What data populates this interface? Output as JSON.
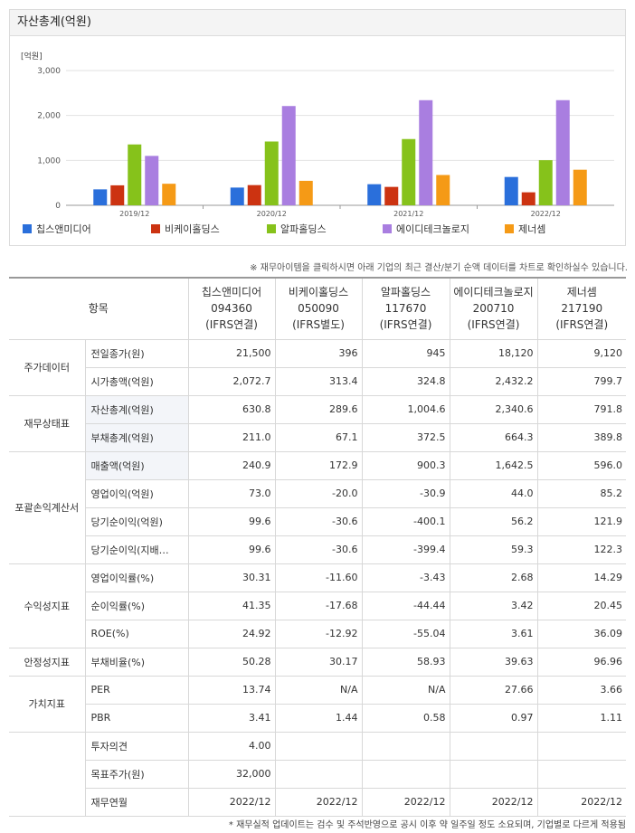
{
  "chart_data": {
    "type": "bar",
    "title": "자산총계(억원)",
    "unit_label": "[억원]",
    "categories": [
      "2019/12",
      "2020/12",
      "2021/12",
      "2022/12"
    ],
    "ylim": [
      0,
      3000
    ],
    "yticks": [
      "0",
      "1,000",
      "2,000",
      "3,000"
    ],
    "grid": true,
    "legend_position": "bottom",
    "series": [
      {
        "name": "칩스앤미디어",
        "color": "#2a6fdb",
        "values": [
          355,
          395,
          470,
          630.8
        ]
      },
      {
        "name": "비케이홀딩스",
        "color": "#cc3311",
        "values": [
          445,
          450,
          410,
          289.6
        ]
      },
      {
        "name": "알파홀딩스",
        "color": "#86c21b",
        "values": [
          1355,
          1420,
          1475,
          1004.6
        ]
      },
      {
        "name": "에이디테크놀로지",
        "color": "#a97ee0",
        "values": [
          1100,
          2210,
          2340,
          2340.6
        ]
      },
      {
        "name": "제너셈",
        "color": "#f59a16",
        "values": [
          480,
          545,
          675,
          791.8
        ]
      }
    ]
  },
  "notice": "※ 재무아이템을 클릭하시면 아래 기업의 최근 결산/분기 순액 데이터를 차트로 확인하실수 있습니다.",
  "table": {
    "header_label": "항목",
    "companies": [
      {
        "name": "칩스앤미디어",
        "code": "094360",
        "basis": "(IFRS연결)"
      },
      {
        "name": "비케이홀딩스",
        "code": "050090",
        "basis": "(IFRS별도)"
      },
      {
        "name": "알파홀딩스",
        "code": "117670",
        "basis": "(IFRS연결)"
      },
      {
        "name": "에이디테크놀로지",
        "code": "200710",
        "basis": "(IFRS연결)"
      },
      {
        "name": "제너셈",
        "code": "217190",
        "basis": "(IFRS연결)"
      }
    ],
    "groups": [
      {
        "name": "주가데이터",
        "rows": [
          {
            "item": "전일종가(원)",
            "values": [
              "21,500",
              "396",
              "945",
              "18,120",
              "9,120"
            ]
          },
          {
            "item": "시가총액(억원)",
            "values": [
              "2,072.7",
              "313.4",
              "324.8",
              "2,432.2",
              "799.7"
            ]
          }
        ]
      },
      {
        "name": "재무상태표",
        "rows": [
          {
            "item": "자산총계(억원)",
            "shade": true,
            "values": [
              "630.8",
              "289.6",
              "1,004.6",
              "2,340.6",
              "791.8"
            ]
          },
          {
            "item": "부채총계(억원)",
            "shade": true,
            "values": [
              "211.0",
              "67.1",
              "372.5",
              "664.3",
              "389.8"
            ]
          }
        ]
      },
      {
        "name": "포괄손익계산서",
        "rows": [
          {
            "item": "매출액(억원)",
            "shade": true,
            "values": [
              "240.9",
              "172.9",
              "900.3",
              "1,642.5",
              "596.0"
            ]
          },
          {
            "item": "영업이익(억원)",
            "values": [
              "73.0",
              "-20.0",
              "-30.9",
              "44.0",
              "85.2"
            ]
          },
          {
            "item": "당기순이익(억원)",
            "values": [
              "99.6",
              "-30.6",
              "-400.1",
              "56.2",
              "121.9"
            ]
          },
          {
            "item": "당기순이익(지배…",
            "values": [
              "99.6",
              "-30.6",
              "-399.4",
              "59.3",
              "122.3"
            ]
          }
        ]
      },
      {
        "name": "수익성지표",
        "rows": [
          {
            "item": "영업이익률(%)",
            "values": [
              "30.31",
              "-11.60",
              "-3.43",
              "2.68",
              "14.29"
            ]
          },
          {
            "item": "순이익률(%)",
            "values": [
              "41.35",
              "-17.68",
              "-44.44",
              "3.42",
              "20.45"
            ]
          },
          {
            "item": "ROE(%)",
            "values": [
              "24.92",
              "-12.92",
              "-55.04",
              "3.61",
              "36.09"
            ]
          }
        ]
      },
      {
        "name": "안정성지표",
        "rows": [
          {
            "item": "부채비율(%)",
            "values": [
              "50.28",
              "30.17",
              "58.93",
              "39.63",
              "96.96"
            ]
          }
        ]
      },
      {
        "name": "가치지표",
        "rows": [
          {
            "item": "PER",
            "values": [
              "13.74",
              "N/A",
              "N/A",
              "27.66",
              "3.66"
            ]
          },
          {
            "item": "PBR",
            "values": [
              "3.41",
              "1.44",
              "0.58",
              "0.97",
              "1.11"
            ]
          }
        ]
      },
      {
        "name": "",
        "rows": [
          {
            "item": "투자의견",
            "values": [
              "4.00",
              "",
              "",
              "",
              ""
            ]
          },
          {
            "item": "목표주가(원)",
            "values": [
              "32,000",
              "",
              "",
              "",
              ""
            ]
          },
          {
            "item": "재무연월",
            "values": [
              "2022/12",
              "2022/12",
              "2022/12",
              "2022/12",
              "2022/12"
            ]
          }
        ]
      }
    ]
  },
  "footnote": "* 재무실적 업데이트는 검수 및 주석반영으로 공시 이후 약 일주일 정도 소요되며, 기업별로 다르게 적용됨"
}
